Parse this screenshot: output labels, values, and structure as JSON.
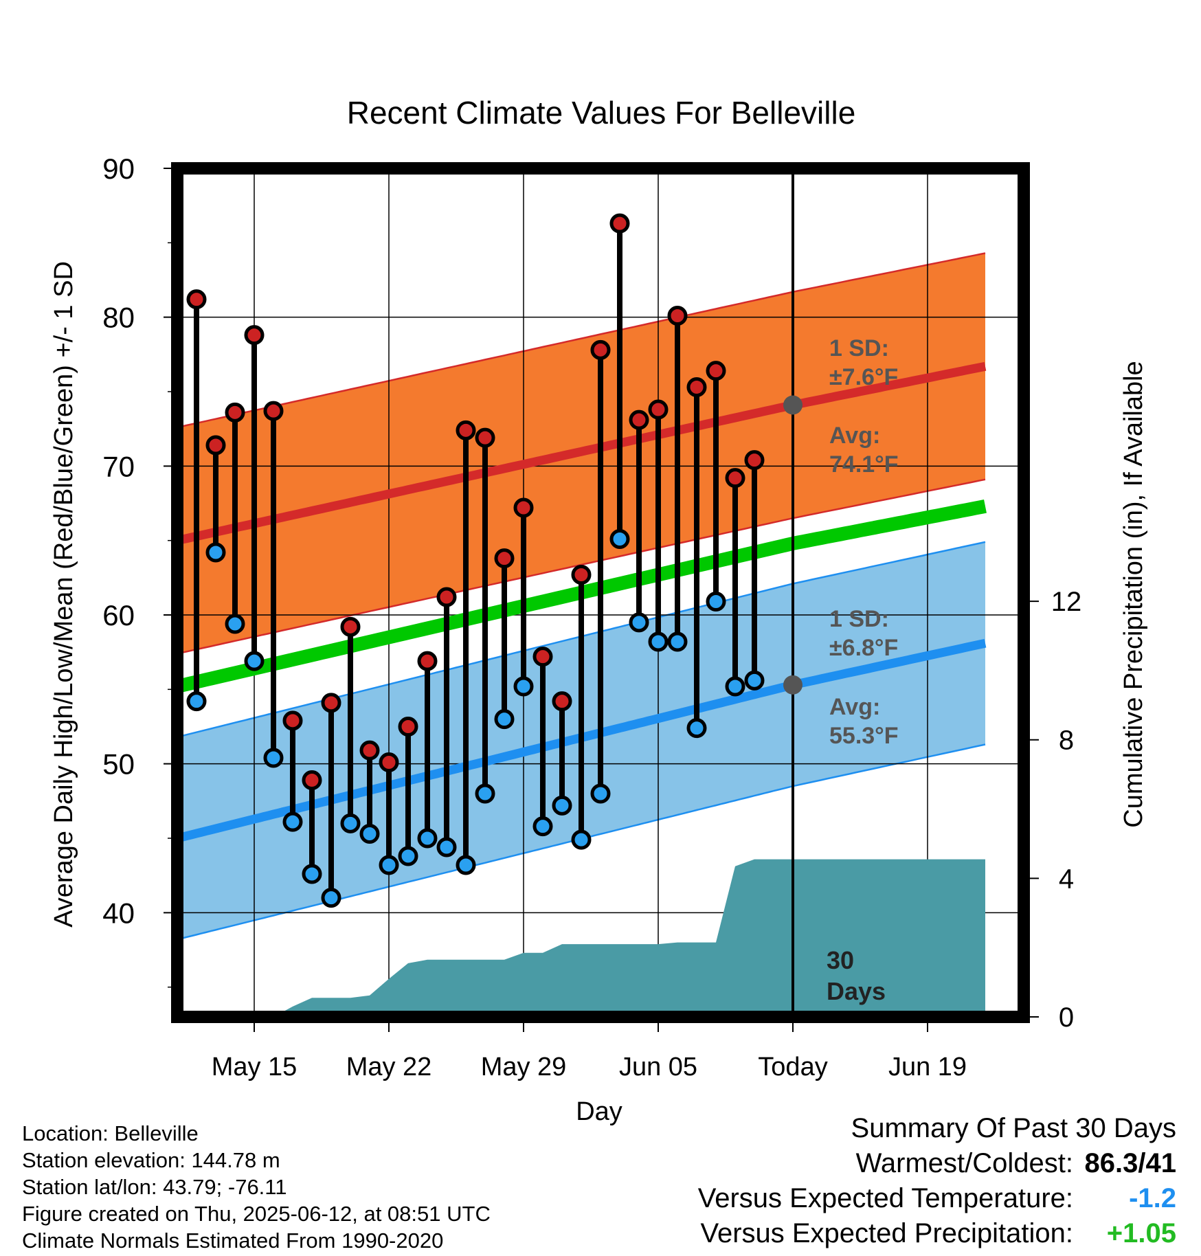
{
  "chart_data": {
    "type": "line",
    "title": "Recent Climate Values For Belleville",
    "xlabel": "Day",
    "ylabel": "Average Daily High/Low/Mean (Red/Blue/Green) +/- 1 SD",
    "y2label": "Cumulative Precipitation (in), If Available",
    "x_range": [
      "2025-05-11",
      "2025-06-24"
    ],
    "ylim": [
      33,
      90
    ],
    "y2lim": [
      0,
      24.5
    ],
    "grid": true,
    "x_ticks": [
      {
        "date": "2025-05-15",
        "label": "May 15"
      },
      {
        "date": "2025-05-22",
        "label": "May 22"
      },
      {
        "date": "2025-05-29",
        "label": "May 29"
      },
      {
        "date": "2025-06-05",
        "label": "Jun 05"
      },
      {
        "date": "2025-06-12",
        "label": "Today"
      },
      {
        "date": "2025-06-19",
        "label": "Jun 19"
      }
    ],
    "y_ticks": [
      40,
      50,
      60,
      70,
      80,
      90
    ],
    "y_tick_labels": [
      "40",
      "50",
      "60",
      "70",
      "80",
      "90"
    ],
    "y2_ticks": [
      0,
      4,
      8,
      12
    ],
    "y2_tick_labels": [
      "0",
      "4",
      "8",
      "12"
    ],
    "normals": {
      "dates": [
        "2025-05-11",
        "2025-06-12",
        "2025-06-22"
      ],
      "high_avg": [
        65.0,
        74.1,
        76.7
      ],
      "high_sd": 7.6,
      "low_avg": [
        45.0,
        55.3,
        58.1
      ],
      "low_sd": 6.8,
      "mean_avg": [
        55.2,
        64.8,
        67.3
      ]
    },
    "daily": {
      "dates": [
        "2025-05-12",
        "2025-05-13",
        "2025-05-14",
        "2025-05-15",
        "2025-05-16",
        "2025-05-17",
        "2025-05-18",
        "2025-05-19",
        "2025-05-20",
        "2025-05-21",
        "2025-05-22",
        "2025-05-23",
        "2025-05-24",
        "2025-05-25",
        "2025-05-26",
        "2025-05-27",
        "2025-05-28",
        "2025-05-29",
        "2025-05-30",
        "2025-05-31",
        "2025-06-01",
        "2025-06-02",
        "2025-06-03",
        "2025-06-04",
        "2025-06-05",
        "2025-06-06",
        "2025-06-07",
        "2025-06-08",
        "2025-06-09",
        "2025-06-10",
        "2025-06-11"
      ],
      "highs": [
        81.2,
        71.4,
        73.6,
        78.8,
        73.7,
        52.9,
        48.9,
        54.1,
        59.2,
        50.9,
        50.1,
        52.5,
        56.9,
        61.2,
        72.4,
        71.9,
        63.8,
        67.2,
        57.2,
        54.2,
        62.7,
        77.8,
        86.3,
        73.1,
        73.8,
        80.1,
        75.3,
        76.4,
        69.2,
        70.4,
        null
      ],
      "lows": [
        54.2,
        64.2,
        59.4,
        56.9,
        50.4,
        46.1,
        42.6,
        41.0,
        46.0,
        45.3,
        43.2,
        43.8,
        45.0,
        44.4,
        43.2,
        48.0,
        53.0,
        55.2,
        45.8,
        47.2,
        44.9,
        48.0,
        65.1,
        59.5,
        58.2,
        58.2,
        52.4,
        60.9,
        55.2,
        55.6,
        null
      ]
    },
    "precip_cumulative": {
      "dates": [
        "2025-05-11",
        "2025-05-16",
        "2025-05-17",
        "2025-05-18",
        "2025-05-19",
        "2025-05-20",
        "2025-05-21",
        "2025-05-22",
        "2025-05-23",
        "2025-05-24",
        "2025-05-25",
        "2025-05-26",
        "2025-05-27",
        "2025-05-28",
        "2025-05-29",
        "2025-05-30",
        "2025-05-31",
        "2025-06-01",
        "2025-06-02",
        "2025-06-03",
        "2025-06-04",
        "2025-06-05",
        "2025-06-06",
        "2025-06-07",
        "2025-06-08",
        "2025-06-09",
        "2025-06-10",
        "2025-06-11",
        "2025-06-12",
        "2025-06-22"
      ],
      "values": [
        0,
        0,
        0.3,
        0.55,
        0.55,
        0.55,
        0.62,
        1.1,
        1.55,
        1.65,
        1.65,
        1.65,
        1.65,
        1.65,
        1.85,
        1.85,
        2.1,
        2.1,
        2.1,
        2.1,
        2.1,
        2.1,
        2.15,
        2.15,
        2.15,
        4.35,
        4.55,
        4.55,
        4.55,
        4.55
      ]
    },
    "annotations": {
      "high_sd_label": "1 SD:",
      "high_sd_value": "±7.6°F",
      "high_avg_label": "Avg:",
      "high_avg_value": "74.1°F",
      "low_sd_label": "1 SD:",
      "low_sd_value": "±6.8°F",
      "low_avg_label": "Avg:",
      "low_avg_value": "55.3°F",
      "window_line1": "30",
      "window_line2": "Days"
    },
    "colors": {
      "high_band": "#f47a2e",
      "high_line": "#d42a2a",
      "low_band": "#87c3e8",
      "low_line": "#1e8ff0",
      "mean_line": "#00c800",
      "precip": "#4a9ba5",
      "high_dot": "#cc2222",
      "low_dot": "#2aa0f0",
      "today_dot": "#555555",
      "label_gray": "#555555"
    }
  },
  "station": {
    "location": "Location: Belleville",
    "elevation": "Station elevation: 144.78 m",
    "latlon": "Station lat/lon: 43.79; -76.11",
    "created": "Figure created on Thu, 2025-06-12, at 08:51 UTC",
    "normals": "Climate Normals Estimated From 1990-2020"
  },
  "summary": {
    "title": "Summary Of Past 30 Days",
    "warm_cold_label": "Warmest/Coldest:",
    "warm_cold_value": "86.3/41",
    "temp_label": "Versus Expected Temperature:",
    "temp_value": "-1.2",
    "temp_color": "#1e8ff0",
    "precip_label": "Versus Expected Precipitation:",
    "precip_value": "+1.05",
    "precip_color": "#22bb22"
  }
}
